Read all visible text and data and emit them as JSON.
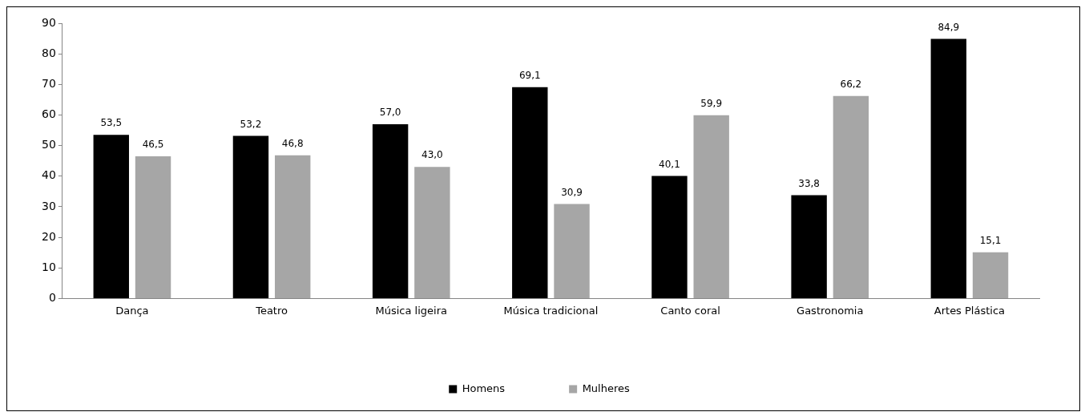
{
  "chart_data": {
    "type": "bar",
    "categories": [
      "Dança",
      "Teatro",
      "Música ligeira",
      "Música tradicional",
      "Canto coral",
      "Gastronomia",
      "Artes Plástica"
    ],
    "series": [
      {
        "name": "Homens",
        "color": "#000000",
        "values": [
          53.5,
          53.2,
          57.0,
          69.1,
          40.1,
          33.8,
          84.9
        ],
        "value_labels": [
          "53,5",
          "53,2",
          "57,0",
          "69,1",
          "40,1",
          "33,8",
          "84,9"
        ]
      },
      {
        "name": "Mulheres",
        "color": "#a6a6a6",
        "values": [
          46.5,
          46.8,
          43.0,
          30.9,
          59.9,
          66.2,
          15.1
        ],
        "value_labels": [
          "46,5",
          "46,8",
          "43,0",
          "30,9",
          "59,9",
          "66,2",
          "15,1"
        ]
      }
    ],
    "ylim": [
      0,
      90
    ],
    "yticks": [
      0,
      10,
      20,
      30,
      40,
      50,
      60,
      70,
      80,
      90
    ],
    "grid": false,
    "legend": "bottom"
  }
}
